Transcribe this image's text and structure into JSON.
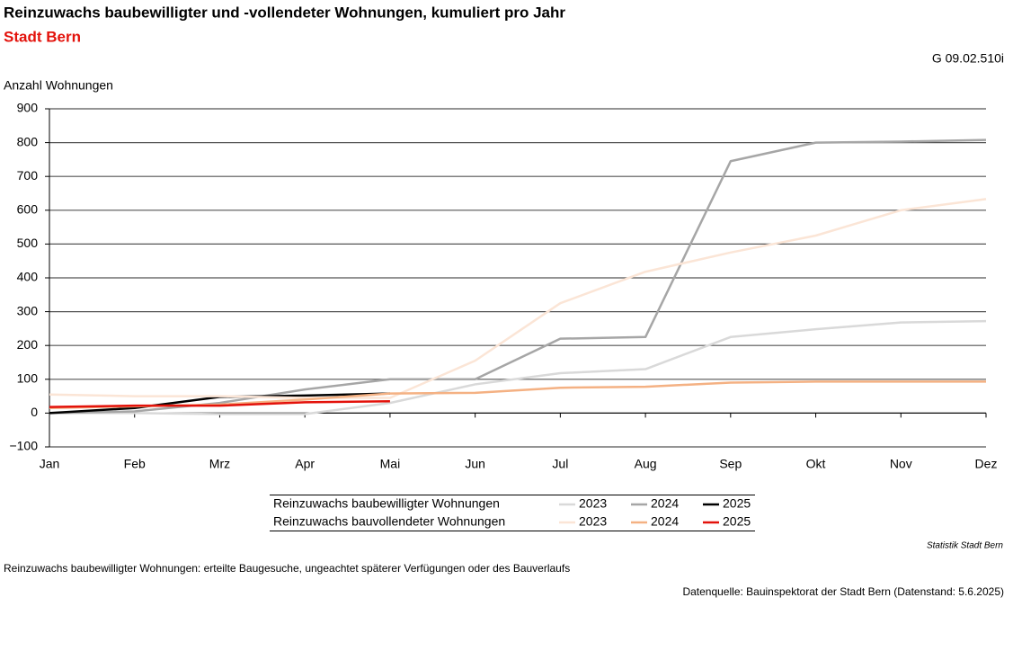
{
  "chart_data": {
    "type": "line",
    "title": "Reinzuwachs baubewilligter und -vollendeter Wohnungen, kumuliert pro Jahr",
    "subtitle": "Stadt Bern",
    "code": "G 09.02.510i",
    "y_label": "Anzahl Wohnungen",
    "categories": [
      "Jan",
      "Feb",
      "Mrz",
      "Apr",
      "Mai",
      "Jun",
      "Jul",
      "Aug",
      "Sep",
      "Okt",
      "Nov",
      "Dez"
    ],
    "ylim": [
      -100,
      900
    ],
    "yticks": [
      {
        "value": -100,
        "label": "−100"
      },
      0,
      100,
      200,
      300,
      400,
      500,
      600,
      700,
      800,
      900
    ],
    "grid": true,
    "series_groups": [
      {
        "name": "Reinzuwachs baubewilligter Wohnungen",
        "series": [
          {
            "name": "2023",
            "color": "#d9d9d9",
            "values": [
              0,
              0,
              -3,
              -3,
              30,
              85,
              118,
              130,
              225,
              248,
              268,
              272
            ]
          },
          {
            "name": "2024",
            "color": "#a6a6a6",
            "values": [
              0,
              5,
              30,
              70,
              100,
              100,
              220,
              225,
              745,
              800,
              803,
              808
            ]
          },
          {
            "name": "2025",
            "color": "#000000",
            "values": [
              0,
              15,
              48,
              52,
              58,
              null,
              null,
              null,
              null,
              null,
              null,
              null
            ]
          }
        ]
      },
      {
        "name": "Reinzuwachs bauvollendeter Wohnungen",
        "series": [
          {
            "name": "2023",
            "color": "#fbe5d6",
            "values": [
              55,
              50,
              50,
              45,
              45,
              155,
              325,
              418,
              475,
              525,
              600,
              633
            ]
          },
          {
            "name": "2024",
            "color": "#f4b183",
            "values": [
              15,
              20,
              25,
              40,
              58,
              60,
              75,
              78,
              90,
              93,
              93,
              93
            ]
          },
          {
            "name": "2025",
            "color": "#e3120b",
            "values": [
              18,
              22,
              22,
              32,
              35,
              null,
              null,
              null,
              null,
              null,
              null,
              null
            ]
          }
        ]
      }
    ],
    "source_label": "Statistik Stadt Bern",
    "footnote": "Reinzuwachs baubewilligter Wohnungen: erteilte Baugesuche, ungeachtet späterer Verfügungen oder des Bauverlaufs",
    "data_source": "Datenquelle: Bauinspektorat der Stadt Bern (Datenstand: 5.6.2025)"
  }
}
